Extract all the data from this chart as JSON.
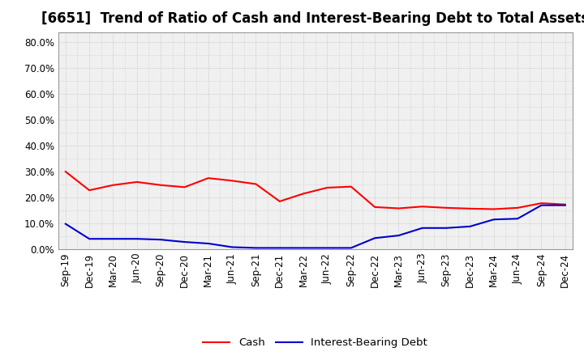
{
  "title": "[6651]  Trend of Ratio of Cash and Interest-Bearing Debt to Total Assets",
  "x_labels": [
    "Sep-19",
    "Dec-19",
    "Mar-20",
    "Jun-20",
    "Sep-20",
    "Dec-20",
    "Mar-21",
    "Jun-21",
    "Sep-21",
    "Dec-21",
    "Mar-22",
    "Jun-22",
    "Sep-22",
    "Dec-22",
    "Mar-23",
    "Jun-23",
    "Sep-23",
    "Dec-23",
    "Mar-24",
    "Jun-24",
    "Sep-24",
    "Dec-24"
  ],
  "cash": [
    0.3,
    0.228,
    0.248,
    0.26,
    0.248,
    0.24,
    0.275,
    0.265,
    0.252,
    0.185,
    0.215,
    0.238,
    0.242,
    0.163,
    0.158,
    0.165,
    0.16,
    0.157,
    0.155,
    0.16,
    0.178,
    0.173
  ],
  "ibd": [
    0.098,
    0.04,
    0.04,
    0.04,
    0.037,
    0.028,
    0.022,
    0.008,
    0.005,
    0.005,
    0.005,
    0.005,
    0.005,
    0.043,
    0.053,
    0.082,
    0.082,
    0.088,
    0.115,
    0.118,
    0.17,
    0.17
  ],
  "cash_color": "#ff0000",
  "ibd_color": "#0000cc",
  "ylim_min": 0.0,
  "ylim_max": 0.84,
  "yticks": [
    0.0,
    0.1,
    0.2,
    0.3,
    0.4,
    0.5,
    0.6,
    0.7,
    0.8
  ],
  "ytick_labels": [
    "0.0%",
    "10.0%",
    "20.0%",
    "30.0%",
    "40.0%",
    "50.0%",
    "60.0%",
    "70.0%",
    "80.0%"
  ],
  "bg_color": "#ffffff",
  "plot_bg_color": "#f0f0f0",
  "grid_color": "#bbbbbb",
  "legend_cash": "Cash",
  "legend_ibd": "Interest-Bearing Debt",
  "title_fontsize": 12,
  "axis_fontsize": 8.5,
  "legend_fontsize": 9.5,
  "line_width": 1.5
}
